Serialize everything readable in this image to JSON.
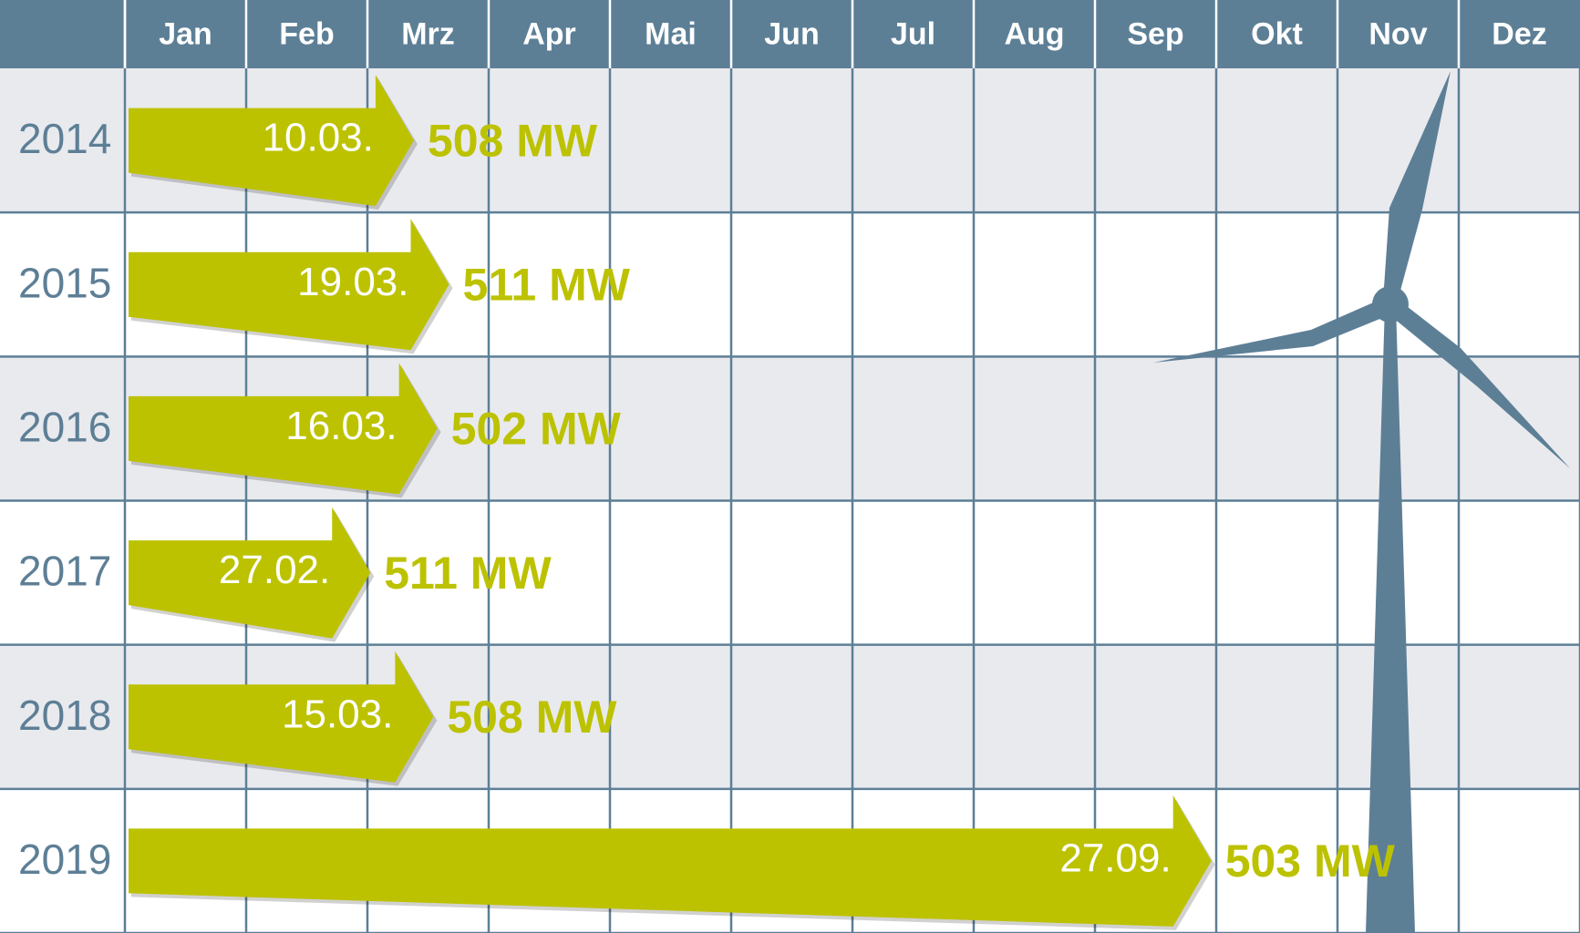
{
  "chart_data": {
    "type": "arrow-timeline",
    "months": [
      "Jan",
      "Feb",
      "Mrz",
      "Apr",
      "Mai",
      "Jun",
      "Jul",
      "Aug",
      "Sep",
      "Okt",
      "Nov",
      "Dez"
    ],
    "categories": [
      "2014",
      "2015",
      "2016",
      "2017",
      "2018",
      "2019"
    ],
    "x": [
      "10.03.",
      "19.03.",
      "16.03.",
      "27.02.",
      "15.03.",
      "27.09."
    ],
    "values": [
      508,
      511,
      502,
      511,
      508,
      503
    ],
    "value_labels": [
      "508 MW",
      "511 MW",
      "502 MW",
      "511 MW",
      "508 MW",
      "503 MW"
    ],
    "color": "#bcc200",
    "grid_color": "#5d7f96"
  }
}
